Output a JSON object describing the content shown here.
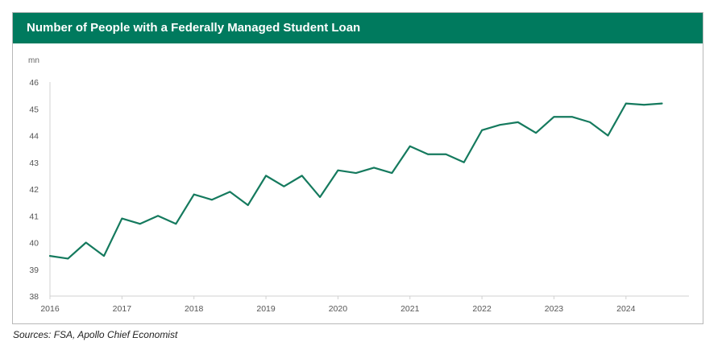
{
  "chart_data": {
    "type": "line",
    "title": "Number of People with a Federally Managed Student Loan",
    "ylabel": "mn",
    "xlabel": "",
    "ylim": [
      38,
      46
    ],
    "yticks": [
      38,
      39,
      40,
      41,
      42,
      43,
      44,
      45,
      46
    ],
    "xlim": [
      2016,
      2024.875
    ],
    "xticks": [
      2016,
      2017,
      2018,
      2019,
      2020,
      2021,
      2022,
      2023,
      2024
    ],
    "grid": false,
    "line_color": "#157a5e",
    "series": [
      {
        "x": [
          2016.0,
          2016.25,
          2016.5,
          2016.75,
          2017.0,
          2017.25,
          2017.5,
          2017.75,
          2018.0,
          2018.25,
          2018.5,
          2018.75,
          2019.0,
          2019.25,
          2019.5,
          2019.75,
          2020.0,
          2020.25,
          2020.5,
          2020.75,
          2021.0,
          2021.25,
          2021.5,
          2021.75,
          2022.0,
          2022.25,
          2022.5,
          2022.75,
          2023.0,
          2023.25,
          2023.5,
          2023.75,
          2024.0,
          2024.25,
          2024.5
        ],
        "values": [
          39.5,
          39.4,
          40.0,
          39.5,
          40.9,
          40.7,
          41.0,
          40.7,
          41.8,
          41.6,
          41.9,
          41.4,
          42.5,
          42.1,
          42.5,
          41.7,
          42.7,
          42.6,
          42.8,
          42.6,
          43.6,
          43.3,
          43.3,
          43.0,
          44.2,
          44.4,
          44.5,
          44.1,
          44.7,
          44.7,
          44.5,
          44.0,
          45.2,
          45.15,
          45.2
        ]
      }
    ]
  },
  "header": {
    "bg_color": "#007a5e"
  },
  "source": "Sources: FSA, Apollo Chief Economist"
}
